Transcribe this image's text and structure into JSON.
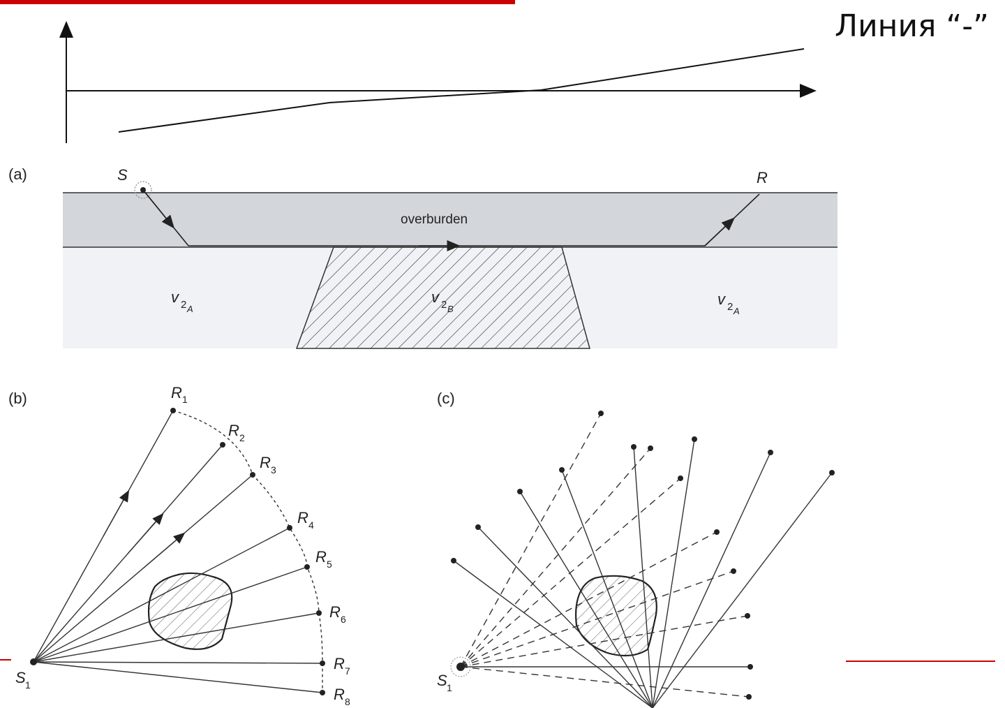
{
  "slide": {
    "title": "Линия “-”",
    "accent_color": "#cc0000"
  },
  "panel_a": {
    "label": "(a)",
    "source": "S",
    "receiver": "R",
    "layer": "overburden",
    "left_velocity": "v",
    "left_velocity_sub": "2",
    "left_velocity_subsub": "A",
    "center_velocity": "v",
    "center_velocity_sub": "2",
    "center_velocity_subsub": "B",
    "right_velocity": "v",
    "right_velocity_sub": "2",
    "right_velocity_subsub": "A"
  },
  "panel_b": {
    "label": "(b)",
    "source": "S",
    "source_sub": "1",
    "receivers": [
      {
        "name": "R",
        "sub": "1"
      },
      {
        "name": "R",
        "sub": "2"
      },
      {
        "name": "R",
        "sub": "3"
      },
      {
        "name": "R",
        "sub": "4"
      },
      {
        "name": "R",
        "sub": "5"
      },
      {
        "name": "R",
        "sub": "6"
      },
      {
        "name": "R",
        "sub": "7"
      },
      {
        "name": "R",
        "sub": "8"
      }
    ]
  },
  "panel_c": {
    "label": "(c)",
    "source": "S",
    "source_sub": "1"
  }
}
